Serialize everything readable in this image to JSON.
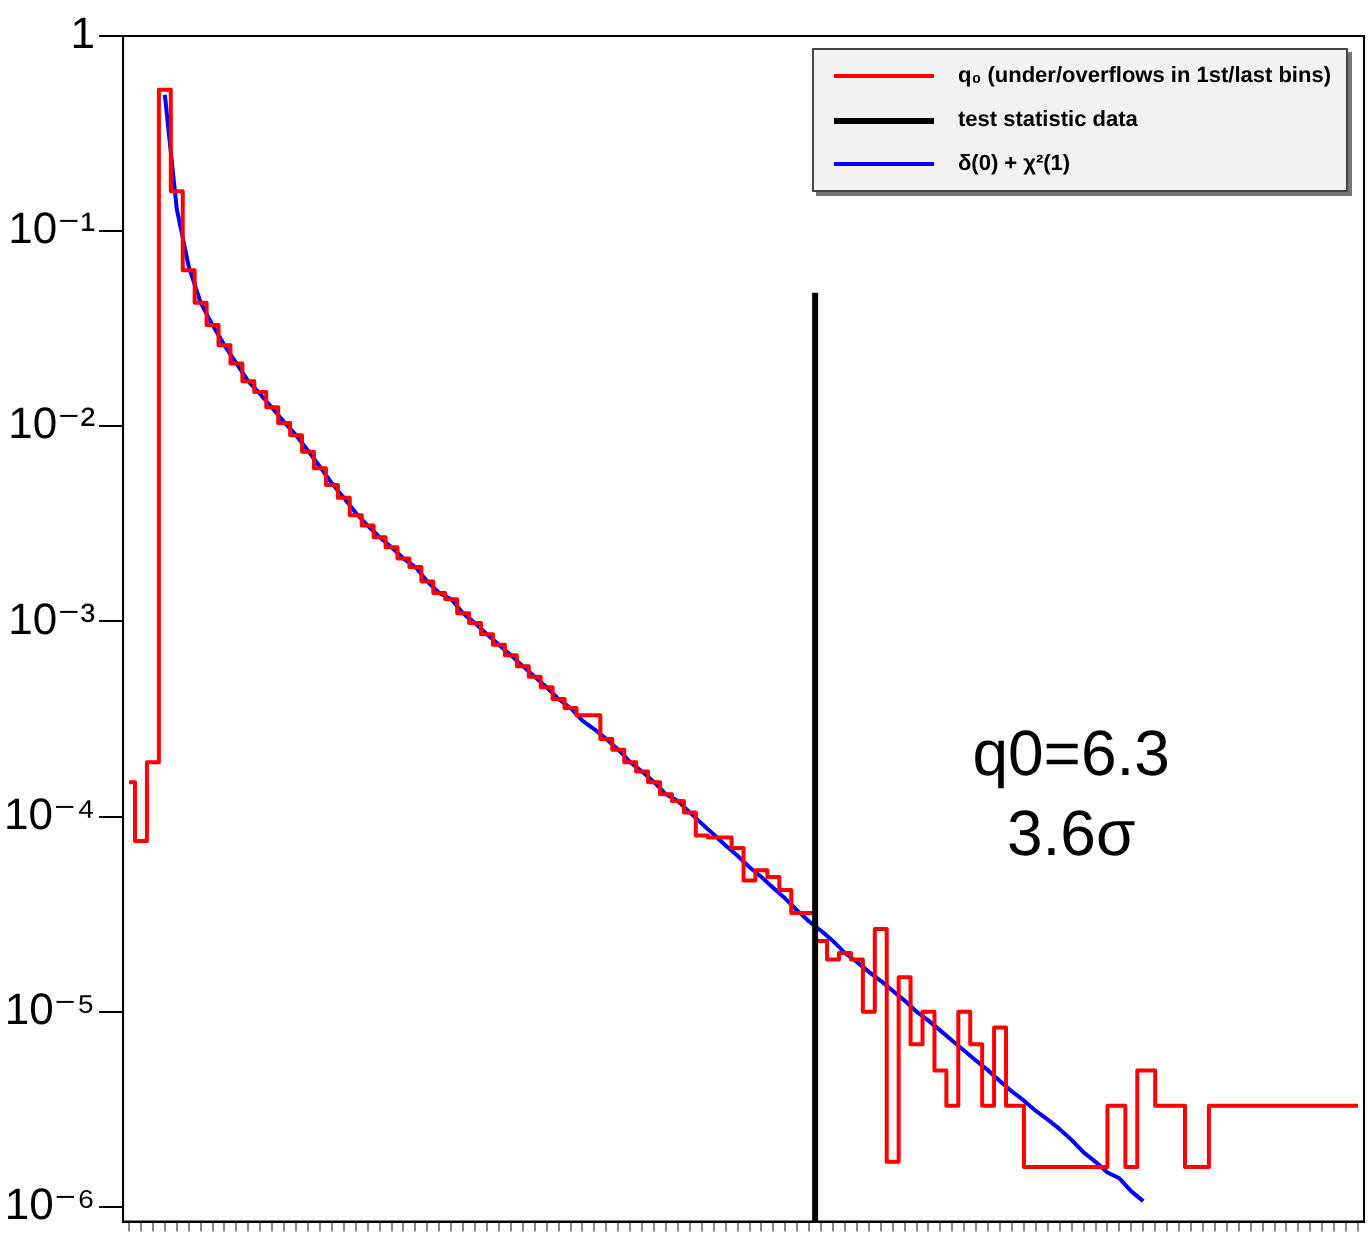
{
  "chart_data": {
    "type": "step",
    "categories": [
      null,
      null,
      null,
      null,
      null,
      null,
      null,
      null,
      null,
      null,
      null,
      null,
      null,
      null,
      null,
      null,
      null,
      null,
      null,
      null,
      null,
      null,
      null,
      null,
      null,
      null,
      null,
      null,
      null,
      null,
      null,
      null,
      null,
      null,
      null,
      null,
      null,
      null,
      null,
      null,
      null,
      null,
      null,
      null,
      null,
      null,
      null,
      null,
      null,
      null,
      null,
      null,
      null,
      null,
      null,
      null,
      null,
      null,
      null,
      null,
      null,
      null,
      null,
      null,
      null,
      null,
      null,
      null,
      null,
      null,
      null,
      null,
      null,
      null,
      null,
      null,
      null,
      null,
      null,
      null,
      null,
      null,
      null,
      null,
      null,
      null,
      null,
      null,
      null,
      null,
      null,
      null,
      null,
      null,
      null,
      null,
      null,
      null,
      null,
      null,
      null,
      null,
      null,
      null
    ],
    "series": [
      {
        "name": "q₀ (under/overflows in 1st/last bins)",
        "color": "#ff0000",
        "values": [
          0.00015,
          7.5e-05,
          0.00019,
          0.53,
          0.16,
          0.063,
          0.043,
          0.033,
          0.026,
          0.021,
          0.017,
          0.015,
          0.0125,
          0.0104,
          0.009,
          0.0074,
          0.0061,
          0.005,
          0.0043,
          0.0035,
          0.0031,
          0.0027,
          0.0024,
          0.0021,
          0.0019,
          0.0016,
          0.0014,
          0.0013,
          0.0011,
          0.00098,
          0.00086,
          0.00076,
          0.00067,
          0.00059,
          0.00052,
          0.00046,
          0.0004,
          0.00036,
          0.00033,
          0.00033,
          0.00025,
          0.00022,
          0.00019,
          0.00017,
          0.00015,
          0.00013,
          0.00012,
          0.000105,
          8e-05,
          7.8e-05,
          7.8e-05,
          6.9e-05,
          4.7e-05,
          5.3e-05,
          4.9e-05,
          4.2e-05,
          3.2e-05,
          3.2e-05,
          2.3e-05,
          1.85e-05,
          2e-05,
          1.85e-05,
          1e-05,
          2.65e-05,
          1.7e-06,
          1.5e-05,
          6.8e-06,
          1e-05,
          5e-06,
          3.3e-06,
          1e-05,
          6.8e-06,
          3.3e-06,
          8.3e-06,
          3.3e-06,
          null,
          1.6e-06,
          1.6e-06,
          null,
          1.6e-06,
          1.6e-06,
          1.6e-06,
          null,
          3.3e-06,
          1.6e-06,
          5e-06,
          null,
          3.3e-06,
          3.3e-06,
          1.6e-06,
          1.6e-06,
          3.3e-06,
          null,
          null,
          null,
          null,
          null,
          null,
          null,
          null,
          null,
          null,
          null,
          3.3e-06
        ]
      },
      {
        "name": "δ(0) + χ²(1)",
        "type": "line",
        "color": "#0000ff",
        "values": [
          null,
          null,
          null,
          0.5,
          0.13,
          0.066,
          0.043,
          0.033,
          0.026,
          0.021,
          0.017,
          0.0146,
          0.0124,
          0.0105,
          0.009,
          0.0075,
          0.0062,
          0.0051,
          0.0043,
          0.0036,
          0.0031,
          0.0027,
          0.0024,
          0.0021,
          0.0019,
          0.0016,
          0.0014,
          0.0013,
          0.0011,
          0.00098,
          0.00086,
          0.00076,
          0.00067,
          0.00059,
          0.00052,
          0.00046,
          0.0004,
          0.00036,
          0.00031,
          0.00028,
          0.00025,
          0.00022,
          0.00019,
          0.00017,
          0.00015,
          0.00013,
          0.00012,
          0.000105,
          9.2e-05,
          8.1e-05,
          7.1e-05,
          6.3e-05,
          5.5e-05,
          4.9e-05,
          4.3e-05,
          3.8e-05,
          3.3e-05,
          2.9e-05,
          2.6e-05,
          2.3e-05,
          2e-05,
          1.8e-05,
          1.6e-05,
          1.44e-05,
          1.28e-05,
          1.14e-05,
          1e-05,
          9e-06,
          8e-06,
          7.1e-06,
          6.3e-06,
          5.6e-06,
          5e-06,
          4.4e-06,
          3.9e-06,
          3.5e-06,
          3.1e-06,
          2.8e-06,
          2.5e-06,
          2.2e-06,
          1.9e-06,
          1.7e-06,
          1.5e-06,
          1.4e-06,
          1.2e-06,
          1.07e-06,
          null,
          null,
          null,
          null,
          null,
          null,
          null,
          null,
          null,
          null,
          null,
          null,
          null,
          null,
          null,
          null,
          null,
          null
        ]
      }
    ],
    "annotations": [
      "test statistic data",
      "q0=6.3",
      "3.6σ"
    ],
    "log": true,
    "ylim": [
      8.4e-07,
      1
    ],
    "yticks": [
      {
        "value": 1e-06,
        "label": "10⁻⁶"
      },
      {
        "value": 1e-05,
        "label": "10⁻⁵"
      },
      {
        "value": 0.0001,
        "label": "10⁻⁴"
      },
      {
        "value": 0.001,
        "label": "10⁻³"
      },
      {
        "value": 0.01,
        "label": "10⁻²"
      },
      {
        "value": 0.1,
        "label": "10⁻¹"
      },
      1
    ],
    "legend": "top right"
  }
}
